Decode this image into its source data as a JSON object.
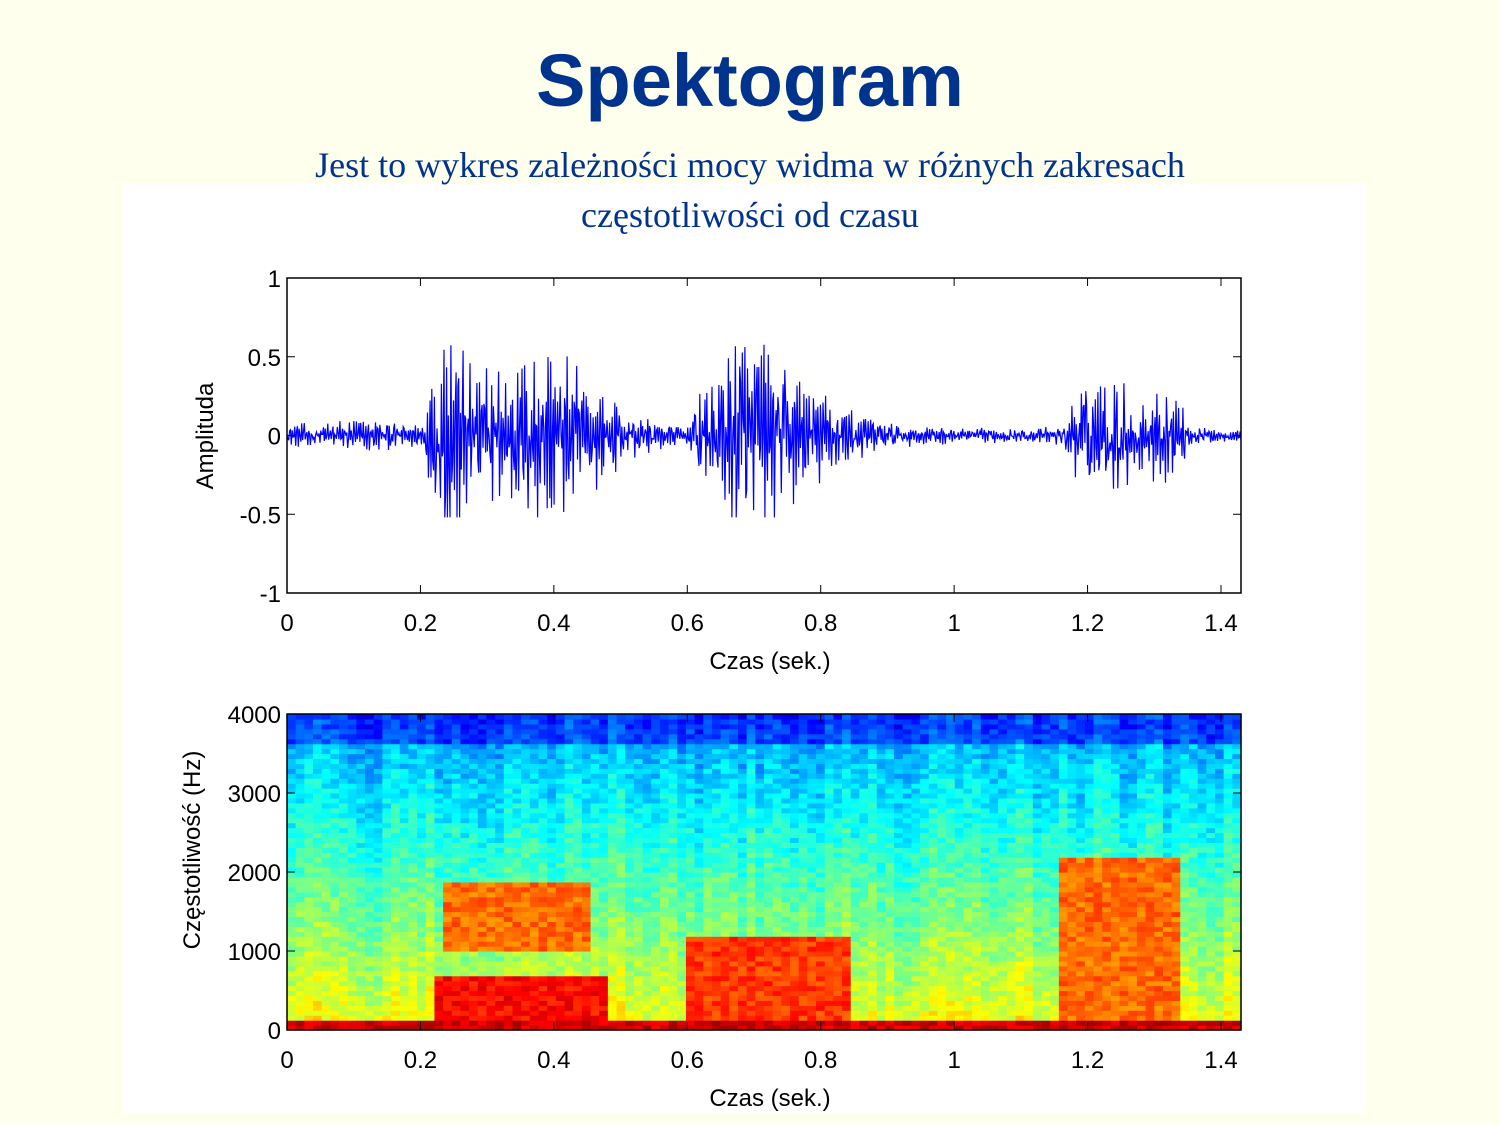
{
  "slide": {
    "title": "Spektogram",
    "subtitle_line1": "Jest to wykres zależności mocy widma w różnych zakresach",
    "subtitle_line2": "częstotliwości od czasu"
  },
  "chart_data": [
    {
      "type": "line",
      "title": "",
      "xlabel": "Czas (sek.)",
      "ylabel": "Amplituda",
      "xlim": [
        0,
        1.43
      ],
      "ylim": [
        -1,
        1
      ],
      "xticks": [
        0,
        0.2,
        0.4,
        0.6,
        0.8,
        1,
        1.2,
        1.4
      ],
      "xtick_labels": [
        "0",
        "0.2",
        "0.4",
        "0.6",
        "0.8",
        "1",
        "1.2",
        "1.4"
      ],
      "yticks": [
        1,
        0.5,
        0,
        -0.5,
        -1
      ],
      "ytick_labels": [
        "1",
        "0.5",
        "0",
        "-0.5",
        "-1"
      ],
      "color": "#0000ff",
      "envelope": {
        "x": [
          0,
          0.05,
          0.1,
          0.15,
          0.2,
          0.23,
          0.24,
          0.25,
          0.27,
          0.3,
          0.35,
          0.38,
          0.4,
          0.45,
          0.48,
          0.55,
          0.6,
          0.62,
          0.65,
          0.67,
          0.69,
          0.72,
          0.75,
          0.8,
          0.85,
          0.9,
          0.95,
          1.0,
          1.1,
          1.16,
          1.18,
          1.2,
          1.25,
          1.3,
          1.33,
          1.36,
          1.4,
          1.43
        ],
        "amplitude": [
          0.06,
          0.09,
          0.1,
          0.09,
          0.07,
          0.55,
          0.8,
          0.65,
          0.5,
          0.42,
          0.45,
          0.58,
          0.5,
          0.4,
          0.25,
          0.1,
          0.05,
          0.3,
          0.35,
          0.6,
          0.7,
          0.55,
          0.45,
          0.3,
          0.15,
          0.09,
          0.06,
          0.05,
          0.04,
          0.06,
          0.3,
          0.38,
          0.33,
          0.3,
          0.28,
          0.06,
          0.04,
          0.03
        ]
      }
    },
    {
      "type": "heatmap",
      "title": "",
      "xlabel": "Czas (sek.)",
      "ylabel": "Częstotliwość (Hz)",
      "xlim": [
        0,
        1.43
      ],
      "ylim": [
        0,
        4000
      ],
      "xticks": [
        0,
        0.2,
        0.4,
        0.6,
        0.8,
        1,
        1.2,
        1.4
      ],
      "xtick_labels": [
        "0",
        "0.2",
        "0.4",
        "0.6",
        "0.8",
        "1",
        "1.2",
        "1.4"
      ],
      "yticks": [
        4000,
        3000,
        2000,
        1000,
        0
      ],
      "ytick_labels": [
        "4000",
        "3000",
        "2000",
        "1000",
        "0"
      ],
      "colormap": "jet",
      "energy_regions": [
        {
          "t": [
            0.22,
            0.48
          ],
          "f": [
            0,
            700
          ],
          "level": 0.95
        },
        {
          "t": [
            0.24,
            0.45
          ],
          "f": [
            1000,
            1900
          ],
          "level": 0.85
        },
        {
          "t": [
            0.6,
            0.85
          ],
          "f": [
            0,
            1200
          ],
          "level": 0.9
        },
        {
          "t": [
            1.16,
            1.34
          ],
          "f": [
            0,
            2200
          ],
          "level": 0.85
        },
        {
          "t": [
            0.0,
            1.43
          ],
          "f": [
            0,
            150
          ],
          "level": 1.0
        }
      ]
    }
  ]
}
